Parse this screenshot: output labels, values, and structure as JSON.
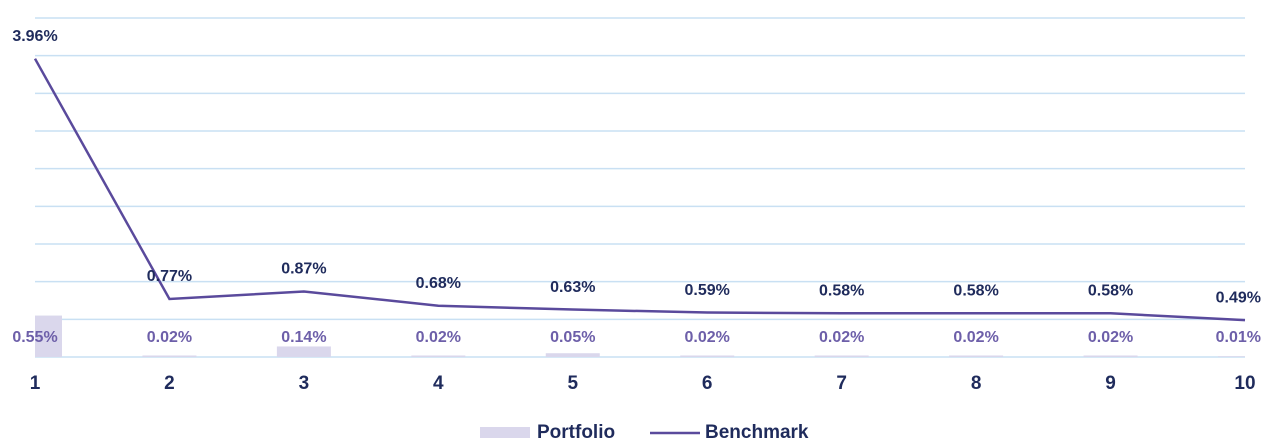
{
  "chart_data": {
    "type": "bar+line",
    "categories": [
      "1",
      "2",
      "3",
      "4",
      "5",
      "6",
      "7",
      "8",
      "9",
      "10"
    ],
    "series": [
      {
        "name": "Portfolio",
        "type": "bar",
        "color": "#dad7ec",
        "label_color": "#6d5fa9",
        "values": [
          0.55,
          0.02,
          0.14,
          0.02,
          0.05,
          0.02,
          0.02,
          0.02,
          0.02,
          0.01
        ],
        "value_labels": [
          "0.55%",
          "0.02%",
          "0.14%",
          "0.02%",
          "0.05%",
          "0.02%",
          "0.02%",
          "0.02%",
          "0.02%",
          "0.01%"
        ]
      },
      {
        "name": "Benchmark",
        "type": "line",
        "color": "#5a4a9c",
        "label_color": "#1f2b5c",
        "values": [
          3.96,
          0.77,
          0.87,
          0.68,
          0.63,
          0.59,
          0.58,
          0.58,
          0.58,
          0.49
        ],
        "value_labels": [
          "3.96%",
          "0.77%",
          "0.87%",
          "0.68%",
          "0.63%",
          "0.59%",
          "0.58%",
          "0.58%",
          "0.58%",
          "0.49%"
        ]
      }
    ],
    "ylim": [
      0,
      4.5
    ],
    "yticks": [
      0,
      0.5,
      1,
      1.5,
      2,
      2.5,
      3,
      3.5,
      4,
      4.5
    ],
    "grid": true,
    "grid_color": "#c9e0f3",
    "legend": "bottom"
  }
}
